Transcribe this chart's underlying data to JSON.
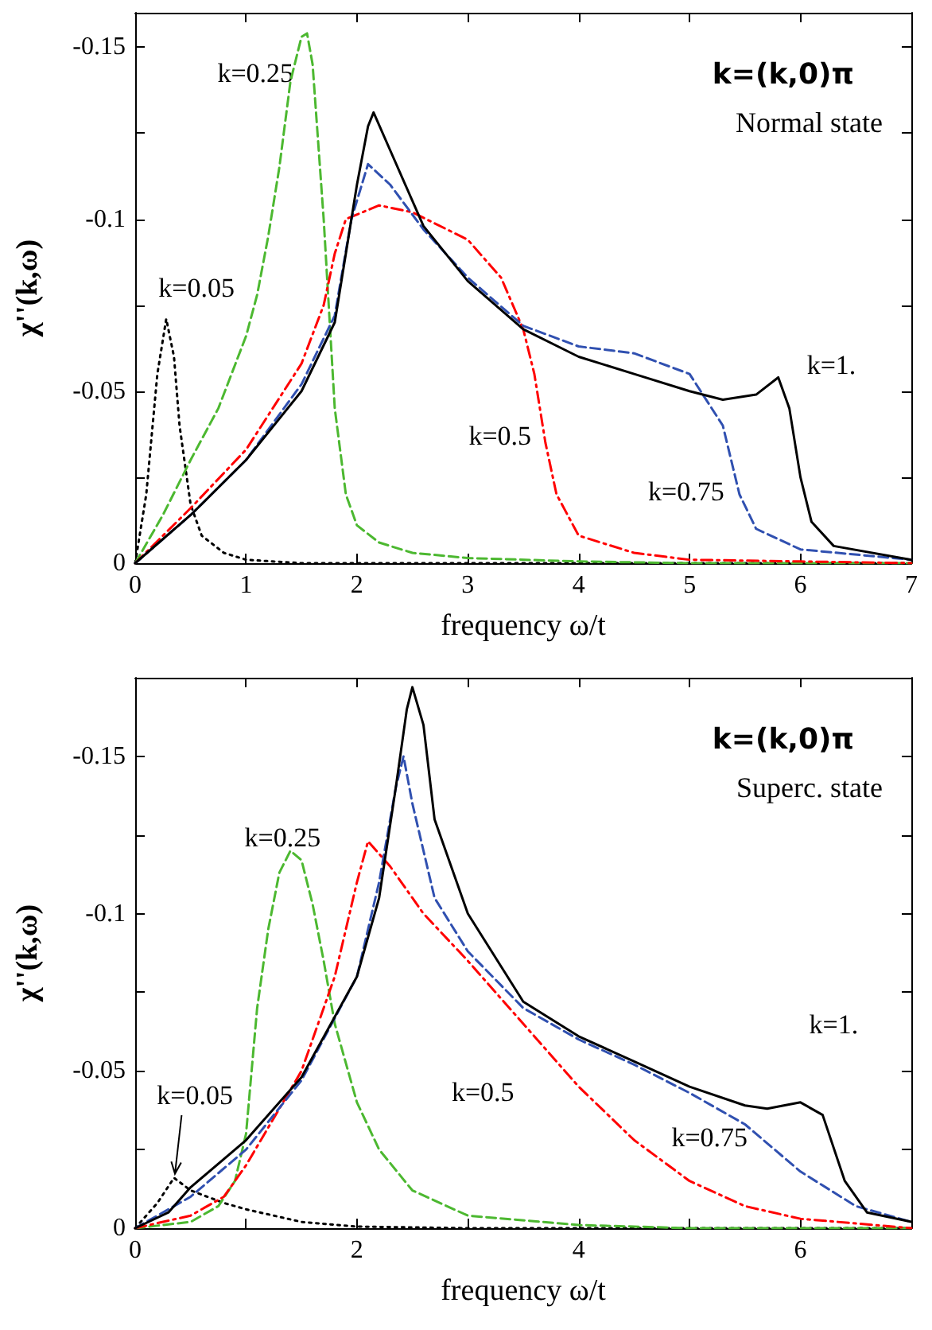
{
  "chart_data": [
    {
      "type": "line",
      "xlabel": "frequency ω/t",
      "ylabel": "χ''(k,ω)",
      "xlim": [
        0,
        7
      ],
      "xticks": [
        0,
        1,
        2,
        3,
        4,
        5,
        6,
        7
      ],
      "ylim": [
        0,
        -0.16
      ],
      "yticks": [
        0,
        {
          "value": -0.025,
          "label": null
        },
        -0.05,
        {
          "value": -0.075,
          "label": null
        },
        -0.1,
        {
          "value": -0.125,
          "label": null
        },
        -0.15
      ],
      "grid": false,
      "legend": false,
      "marker": "none",
      "annotations": [
        "k=(k,0)π",
        "Normal state"
      ],
      "series": [
        {
          "name": "k=0.05",
          "color": "#000000",
          "line_style": "dotted",
          "x": [
            0,
            0.1,
            0.2,
            0.28,
            0.35,
            0.4,
            0.5,
            0.6,
            0.8,
            1.0,
            1.5,
            7
          ],
          "values": [
            0,
            -0.02,
            -0.055,
            -0.071,
            -0.06,
            -0.04,
            -0.017,
            -0.008,
            -0.003,
            -0.001,
            0,
            0
          ]
        },
        {
          "name": "k=0.25",
          "color": "#4cb830",
          "line_style": "dashed",
          "x": [
            0,
            0.25,
            0.5,
            0.75,
            1.0,
            1.1,
            1.2,
            1.3,
            1.4,
            1.5,
            1.55,
            1.6,
            1.7,
            1.8,
            1.9,
            2.0,
            2.2,
            2.5,
            3,
            4,
            5,
            7
          ],
          "values": [
            0,
            -0.014,
            -0.03,
            -0.045,
            -0.066,
            -0.078,
            -0.095,
            -0.115,
            -0.14,
            -0.153,
            -0.154,
            -0.145,
            -0.1,
            -0.045,
            -0.02,
            -0.011,
            -0.006,
            -0.003,
            -0.0015,
            -0.0005,
            0,
            0
          ]
        },
        {
          "name": "k=0.5",
          "color": "#ff0000",
          "line_style": "dashdot",
          "x": [
            0,
            0.5,
            1,
            1.5,
            1.7,
            1.8,
            1.9,
            2.2,
            2.5,
            3,
            3.3,
            3.5,
            3.6,
            3.7,
            3.8,
            4,
            4.5,
            5,
            6,
            7
          ],
          "values": [
            0,
            -0.016,
            -0.033,
            -0.058,
            -0.075,
            -0.09,
            -0.1,
            -0.104,
            -0.102,
            -0.094,
            -0.083,
            -0.068,
            -0.055,
            -0.035,
            -0.02,
            -0.008,
            -0.003,
            -0.001,
            -0.0005,
            0
          ]
        },
        {
          "name": "k=0.75",
          "color": "#3050b0",
          "line_style": "dashed",
          "x": [
            0,
            0.5,
            1,
            1.5,
            1.8,
            1.95,
            2.1,
            2.3,
            2.6,
            3,
            3.5,
            4,
            4.5,
            5,
            5.3,
            5.45,
            5.6,
            6,
            7
          ],
          "values": [
            0,
            -0.014,
            -0.03,
            -0.052,
            -0.072,
            -0.1,
            -0.116,
            -0.11,
            -0.097,
            -0.083,
            -0.069,
            -0.063,
            -0.061,
            -0.055,
            -0.04,
            -0.02,
            -0.01,
            -0.004,
            -0.001
          ]
        },
        {
          "name": "k=1.",
          "color": "#000000",
          "line_style": "solid",
          "x": [
            0,
            0.5,
            1,
            1.5,
            1.8,
            2.0,
            2.1,
            2.15,
            2.3,
            2.6,
            3,
            3.5,
            4,
            4.5,
            5,
            5.3,
            5.6,
            5.8,
            5.9,
            6.0,
            6.1,
            6.3,
            7
          ],
          "values": [
            0,
            -0.014,
            -0.03,
            -0.05,
            -0.07,
            -0.11,
            -0.127,
            -0.131,
            -0.12,
            -0.098,
            -0.082,
            -0.068,
            -0.06,
            -0.055,
            -0.05,
            -0.0475,
            -0.049,
            -0.054,
            -0.045,
            -0.025,
            -0.012,
            -0.005,
            -0.001
          ]
        }
      ]
    },
    {
      "type": "line",
      "xlabel": "frequency ω/t",
      "ylabel": "χ''(k,ω)",
      "xlim": [
        0,
        7
      ],
      "xticks": [
        0,
        {
          "value": 1,
          "label": null
        },
        2,
        {
          "value": 3,
          "label": null
        },
        4,
        {
          "value": 5,
          "label": null
        },
        6
      ],
      "ylim": [
        0,
        -0.175
      ],
      "yticks": [
        0,
        {
          "value": -0.025,
          "label": null
        },
        -0.05,
        {
          "value": -0.075,
          "label": null
        },
        -0.1,
        {
          "value": -0.125,
          "label": null
        },
        -0.15
      ],
      "grid": false,
      "legend": false,
      "marker": "none",
      "annotations": [
        "k=(k,0)π",
        "Superc. state"
      ],
      "series": [
        {
          "name": "k=0.05",
          "color": "#000000",
          "line_style": "dotted",
          "x": [
            0,
            0.2,
            0.35,
            0.5,
            0.8,
            1.0,
            1.5,
            2,
            3,
            7
          ],
          "values": [
            0,
            -0.008,
            -0.016,
            -0.012,
            -0.008,
            -0.006,
            -0.002,
            -0.0005,
            0,
            0
          ]
        },
        {
          "name": "k=0.25",
          "color": "#4cb830",
          "line_style": "dashed",
          "x": [
            0,
            0.5,
            0.75,
            0.9,
            1.0,
            1.1,
            1.2,
            1.3,
            1.4,
            1.5,
            1.6,
            1.7,
            1.8,
            2.0,
            2.2,
            2.5,
            3,
            4,
            5,
            7
          ],
          "values": [
            0,
            -0.002,
            -0.007,
            -0.015,
            -0.03,
            -0.07,
            -0.095,
            -0.113,
            -0.12,
            -0.117,
            -0.103,
            -0.085,
            -0.065,
            -0.04,
            -0.025,
            -0.012,
            -0.004,
            -0.001,
            0,
            0
          ]
        },
        {
          "name": "k=0.5",
          "color": "#ff0000",
          "line_style": "dashdot",
          "x": [
            0,
            0.5,
            0.8,
            1.0,
            1.5,
            1.8,
            2.0,
            2.1,
            2.3,
            2.6,
            3,
            3.5,
            4,
            4.5,
            5,
            5.5,
            6,
            7
          ],
          "values": [
            0,
            -0.004,
            -0.01,
            -0.02,
            -0.05,
            -0.08,
            -0.11,
            -0.123,
            -0.115,
            -0.1,
            -0.085,
            -0.065,
            -0.045,
            -0.028,
            -0.015,
            -0.007,
            -0.003,
            0
          ]
        },
        {
          "name": "k=0.75",
          "color": "#3050b0",
          "line_style": "dashed",
          "x": [
            0,
            0.5,
            1,
            1.5,
            2,
            2.2,
            2.35,
            2.42,
            2.5,
            2.7,
            3,
            3.5,
            4,
            4.5,
            5,
            5.5,
            6,
            6.5,
            7
          ],
          "values": [
            0,
            -0.01,
            -0.025,
            -0.047,
            -0.08,
            -0.11,
            -0.14,
            -0.15,
            -0.135,
            -0.105,
            -0.088,
            -0.07,
            -0.06,
            -0.052,
            -0.043,
            -0.033,
            -0.018,
            -0.007,
            -0.002
          ]
        },
        {
          "name": "k=1.",
          "color": "#000000",
          "line_style": "solid",
          "x": [
            0,
            0.3,
            0.5,
            1,
            1.5,
            2,
            2.2,
            2.35,
            2.45,
            2.5,
            2.6,
            2.7,
            3,
            3.5,
            4,
            4.5,
            5,
            5.5,
            5.7,
            6,
            6.2,
            6.4,
            6.6,
            7
          ],
          "values": [
            0,
            -0.005,
            -0.013,
            -0.028,
            -0.048,
            -0.08,
            -0.105,
            -0.14,
            -0.165,
            -0.172,
            -0.16,
            -0.13,
            -0.1,
            -0.072,
            -0.061,
            -0.053,
            -0.045,
            -0.039,
            -0.038,
            -0.04,
            -0.036,
            -0.015,
            -0.005,
            -0.002
          ]
        }
      ]
    }
  ]
}
